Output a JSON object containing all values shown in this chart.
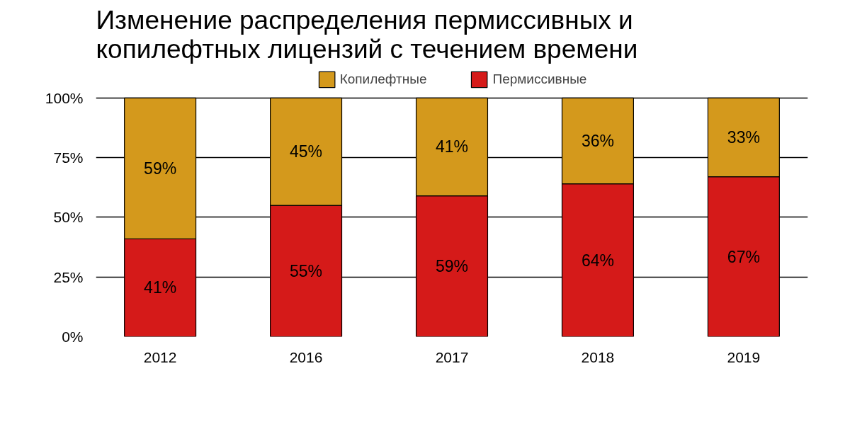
{
  "chart_data": {
    "type": "bar",
    "stacked": true,
    "title": "Изменение распределения пермиссивных и копилефтных лицензий с течением времени",
    "categories": [
      "2012",
      "2016",
      "2017",
      "2018",
      "2019"
    ],
    "series": [
      {
        "name": "Пермиссивные",
        "color": "#d51a19",
        "values": [
          41,
          55,
          59,
          64,
          67
        ],
        "value_labels": [
          "41%",
          "55%",
          "59%",
          "64%",
          "67%"
        ]
      },
      {
        "name": "Копилефтные",
        "color": "#d4991c",
        "values": [
          59,
          45,
          41,
          36,
          33
        ],
        "value_labels": [
          "59%",
          "45%",
          "41%",
          "36%",
          "33%"
        ]
      }
    ],
    "ylim": [
      0,
      100
    ],
    "yticks": [
      {
        "value": 0,
        "label": "0%"
      },
      {
        "value": 25,
        "label": "25%"
      },
      {
        "value": 50,
        "label": "50%"
      },
      {
        "value": 75,
        "label": "75%"
      },
      {
        "value": 100,
        "label": "100%"
      }
    ],
    "grid": "y",
    "legend": "top"
  }
}
